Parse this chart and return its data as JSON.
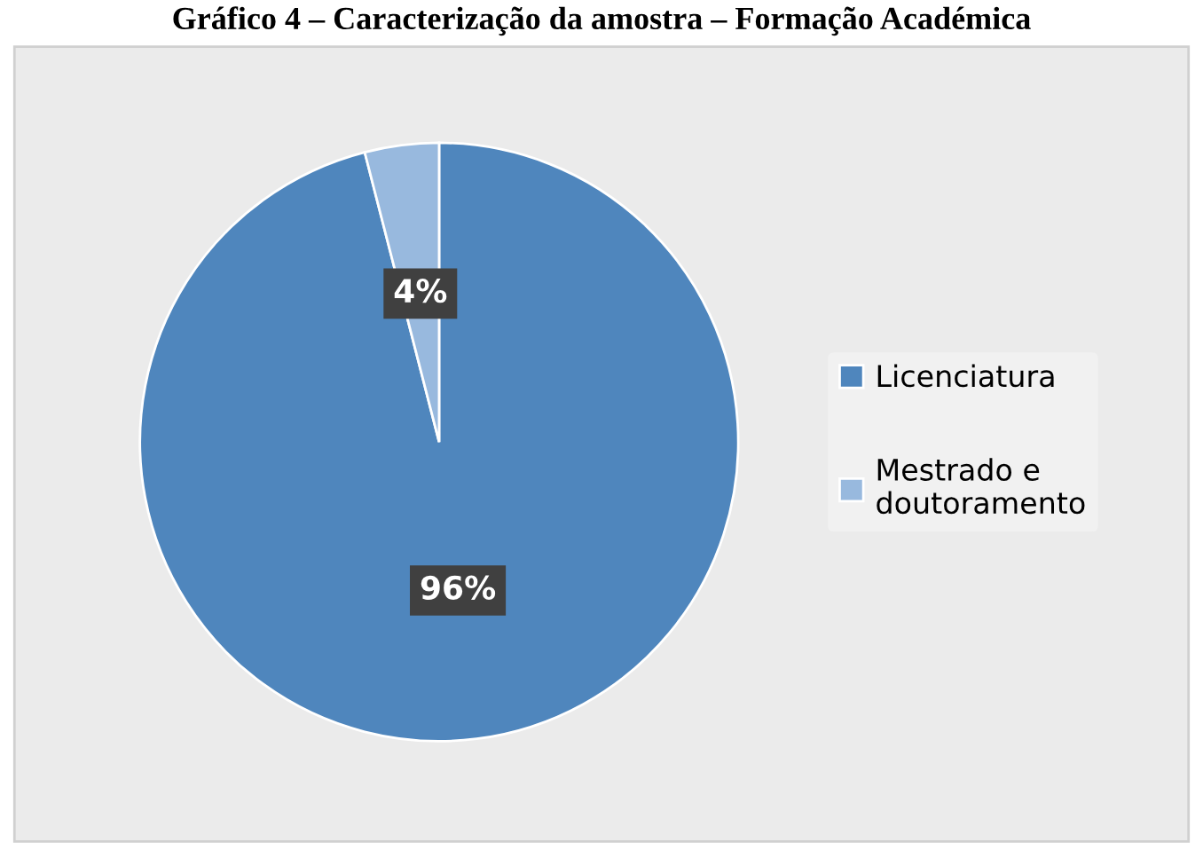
{
  "chart_data": {
    "type": "pie",
    "title": "Gráfico 4 – Caracterização da amostra – Formação Académica",
    "categories": [
      "Licenciatura",
      "Mestrado e\ndoutoramento"
    ],
    "values": [
      96,
      4
    ],
    "colors": [
      "#4f86bd",
      "#98b9de"
    ],
    "value_labels": [
      "96%",
      "4%"
    ],
    "legend": "right"
  }
}
